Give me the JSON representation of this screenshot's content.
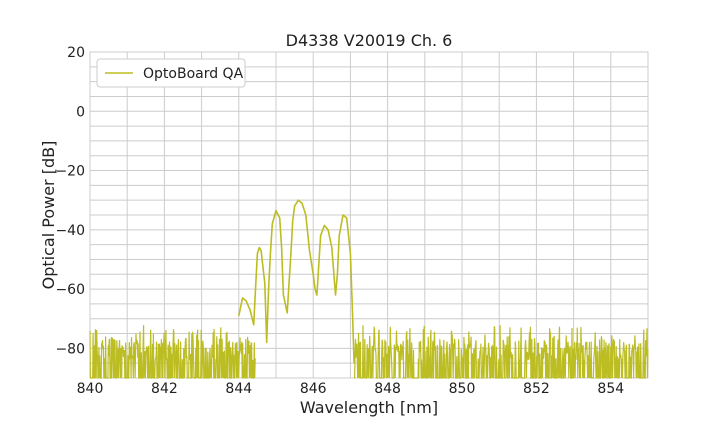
{
  "chart_data": {
    "type": "line",
    "title": "D4338 V20019 Ch. 6",
    "xlabel": "Wavelength [nm]",
    "ylabel": "Optical Power [dB]",
    "xlim": [
      840,
      855
    ],
    "ylim": [
      -90,
      20
    ],
    "xticks": [
      840,
      842,
      844,
      846,
      848,
      850,
      852,
      854
    ],
    "yticks": [
      -80,
      -60,
      -40,
      -20,
      0,
      20
    ],
    "xtick_labels": [
      "840",
      "842",
      "844",
      "846",
      "848",
      "850",
      "852",
      "854"
    ],
    "ytick_labels": [
      "−80",
      "−60",
      "−40",
      "−20",
      "0",
      "20"
    ],
    "grid": true,
    "legend_position": "top-left",
    "noise_floor": {
      "x_ranges": [
        [
          840.0,
          844.45
        ],
        [
          847.1,
          855.0
        ]
      ],
      "min_peak": -84,
      "max_peak": -72,
      "base": -90
    },
    "series": [
      {
        "name": "OptoBoard QA",
        "color": "#bcbd22",
        "x": [
          844.0,
          844.1,
          844.2,
          844.3,
          844.4,
          844.45,
          844.5,
          844.55,
          844.6,
          844.7,
          844.75,
          844.8,
          844.85,
          844.9,
          845.0,
          845.1,
          845.15,
          845.2,
          845.3,
          845.4,
          845.45,
          845.5,
          845.6,
          845.7,
          845.8,
          845.9,
          846.0,
          846.05,
          846.1,
          846.2,
          846.3,
          846.4,
          846.5,
          846.6,
          846.65,
          846.7,
          846.8,
          846.9,
          847.0,
          847.05,
          847.1
        ],
        "values": [
          -69,
          -63,
          -64,
          -67,
          -72,
          -60,
          -48,
          -46,
          -47,
          -58,
          -78,
          -60,
          -48,
          -38,
          -33.5,
          -36,
          -46,
          -62,
          -68,
          -48,
          -37,
          -32,
          -30,
          -31,
          -35,
          -47,
          -55,
          -60,
          -62,
          -42,
          -38.5,
          -40,
          -46,
          -62,
          -55,
          -42,
          -35,
          -36,
          -48,
          -66,
          -85
        ]
      }
    ]
  }
}
